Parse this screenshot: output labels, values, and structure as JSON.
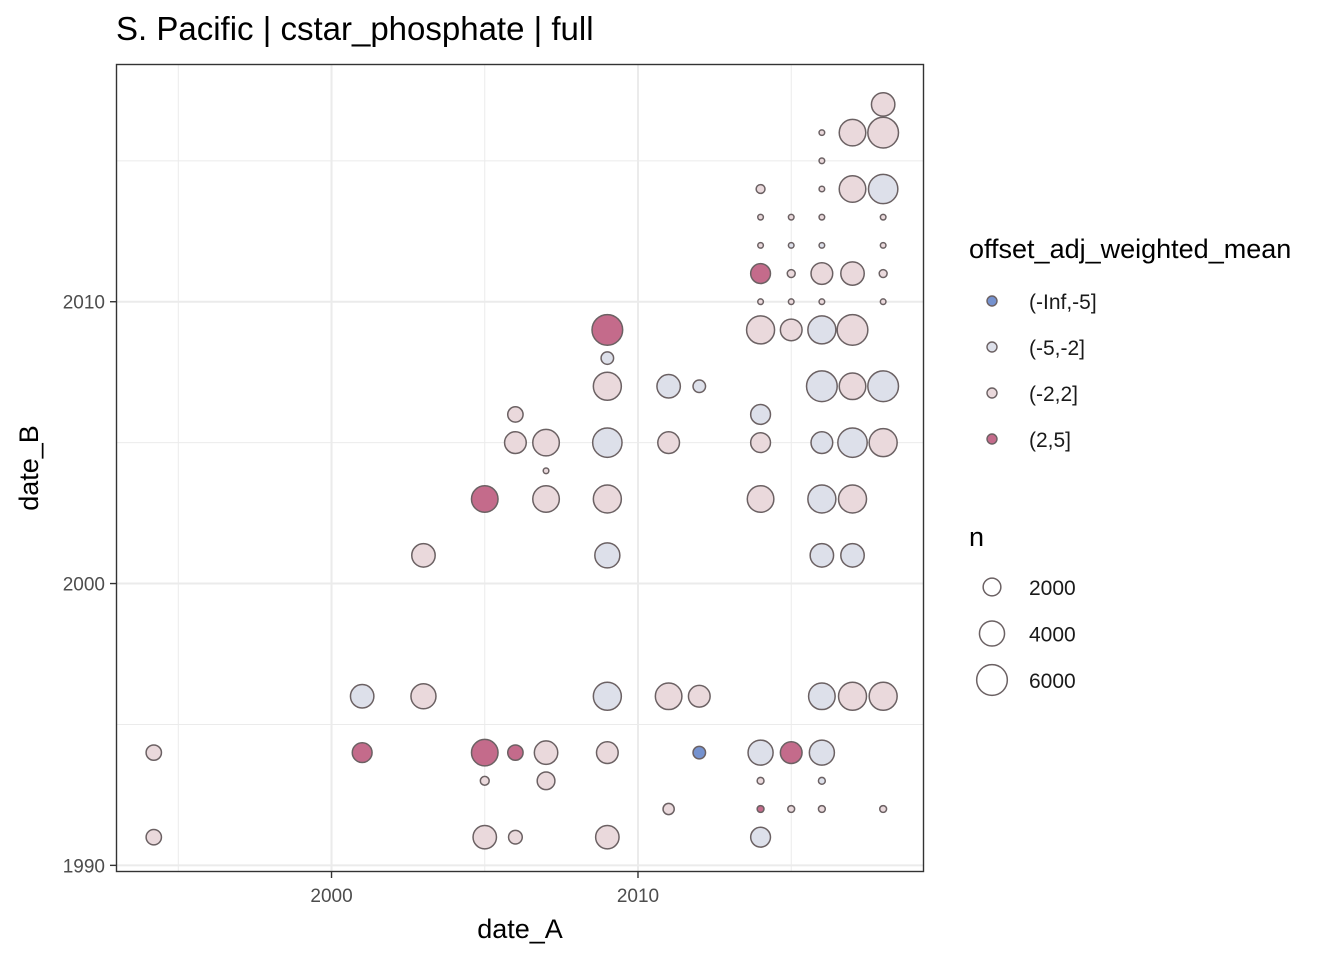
{
  "chart_data": {
    "type": "scatter",
    "title": "S. Pacific | cstar_phosphate | full",
    "xlabel": "date_A",
    "ylabel": "date_B",
    "xlim": [
      1993.0,
      2019.3
    ],
    "ylim": [
      1989.8,
      2018.4
    ],
    "x_ticks": [
      2000,
      2010
    ],
    "y_ticks": [
      1990,
      2000,
      2010
    ],
    "grid": true,
    "legend_position": "right",
    "color_legend": {
      "title": "offset_adj_weighted_mean",
      "entries": [
        {
          "label": "(-Inf,-5]",
          "color": "#7592cf"
        },
        {
          "label": "(-5,-2]",
          "color": "#dde0ea"
        },
        {
          "label": "(-2,2]",
          "color": "#ead9dc"
        },
        {
          "label": "(2,5]",
          "color": "#c46b8b"
        }
      ]
    },
    "size_legend": {
      "title": "n",
      "entries": [
        {
          "label": "2000",
          "value": 2000
        },
        {
          "label": "4000",
          "value": 4000
        },
        {
          "label": "6000",
          "value": 6000
        }
      ]
    },
    "points": [
      {
        "x": 1994.2,
        "y": 1994,
        "n": 1500,
        "group": "(-2,2]"
      },
      {
        "x": 1994.2,
        "y": 1991,
        "n": 1500,
        "group": "(-2,2]"
      },
      {
        "x": 2001,
        "y": 1996,
        "n": 3500,
        "group": "(-5,-2]"
      },
      {
        "x": 2001,
        "y": 1994,
        "n": 2500,
        "group": "(2,5]"
      },
      {
        "x": 2003,
        "y": 1996,
        "n": 4000,
        "group": "(-2,2]"
      },
      {
        "x": 2003,
        "y": 2001,
        "n": 3500,
        "group": "(-2,2]"
      },
      {
        "x": 2005,
        "y": 2003,
        "n": 4500,
        "group": "(2,5]"
      },
      {
        "x": 2005,
        "y": 1994,
        "n": 4500,
        "group": "(2,5]"
      },
      {
        "x": 2005,
        "y": 1993,
        "n": 500,
        "group": "(-2,2]"
      },
      {
        "x": 2005,
        "y": 1991,
        "n": 3500,
        "group": "(-2,2]"
      },
      {
        "x": 2006,
        "y": 2006,
        "n": 1500,
        "group": "(-2,2]"
      },
      {
        "x": 2006,
        "y": 2005,
        "n": 3000,
        "group": "(-2,2]"
      },
      {
        "x": 2006,
        "y": 1994,
        "n": 1500,
        "group": "(2,5]"
      },
      {
        "x": 2006,
        "y": 1991,
        "n": 1200,
        "group": "(-2,2]"
      },
      {
        "x": 2007,
        "y": 2005,
        "n": 4500,
        "group": "(-2,2]"
      },
      {
        "x": 2007,
        "y": 2004,
        "n": 200,
        "group": "(-2,2]"
      },
      {
        "x": 2007,
        "y": 2003,
        "n": 4500,
        "group": "(-2,2]"
      },
      {
        "x": 2007,
        "y": 1994,
        "n": 3500,
        "group": "(-2,2]"
      },
      {
        "x": 2007,
        "y": 1993,
        "n": 2000,
        "group": "(-2,2]"
      },
      {
        "x": 2009,
        "y": 2009,
        "n": 6000,
        "group": "(2,5]"
      },
      {
        "x": 2009,
        "y": 2008,
        "n": 1000,
        "group": "(-5,-2]"
      },
      {
        "x": 2009,
        "y": 2007,
        "n": 5000,
        "group": "(-2,2]"
      },
      {
        "x": 2009,
        "y": 2005,
        "n": 5500,
        "group": "(-5,-2]"
      },
      {
        "x": 2009,
        "y": 2003,
        "n": 5000,
        "group": "(-2,2]"
      },
      {
        "x": 2009,
        "y": 2001,
        "n": 4000,
        "group": "(-5,-2]"
      },
      {
        "x": 2009,
        "y": 1996,
        "n": 5000,
        "group": "(-5,-2]"
      },
      {
        "x": 2009,
        "y": 1994,
        "n": 3000,
        "group": "(-2,2]"
      },
      {
        "x": 2009,
        "y": 1991,
        "n": 3500,
        "group": "(-2,2]"
      },
      {
        "x": 2011,
        "y": 2007,
        "n": 3500,
        "group": "(-5,-2]"
      },
      {
        "x": 2011,
        "y": 2005,
        "n": 3000,
        "group": "(-2,2]"
      },
      {
        "x": 2011,
        "y": 1996,
        "n": 4500,
        "group": "(-2,2]"
      },
      {
        "x": 2011,
        "y": 1992,
        "n": 800,
        "group": "(-2,2]"
      },
      {
        "x": 2012,
        "y": 2007,
        "n": 1000,
        "group": "(-5,-2]"
      },
      {
        "x": 2012,
        "y": 1996,
        "n": 3000,
        "group": "(-2,2]"
      },
      {
        "x": 2012,
        "y": 1994,
        "n": 1000,
        "group": "(-Inf,-5]"
      },
      {
        "x": 2014,
        "y": 2014,
        "n": 500,
        "group": "(-2,2]"
      },
      {
        "x": 2014,
        "y": 2013,
        "n": 200,
        "group": "(-2,2]"
      },
      {
        "x": 2014,
        "y": 2012,
        "n": 200,
        "group": "(-2,2]"
      },
      {
        "x": 2014,
        "y": 2011,
        "n": 2500,
        "group": "(2,5]"
      },
      {
        "x": 2014,
        "y": 2010,
        "n": 200,
        "group": "(-2,2]"
      },
      {
        "x": 2014,
        "y": 2009,
        "n": 5000,
        "group": "(-2,2]"
      },
      {
        "x": 2014,
        "y": 2006,
        "n": 2500,
        "group": "(-5,-2]"
      },
      {
        "x": 2014,
        "y": 2005,
        "n": 2500,
        "group": "(-2,2]"
      },
      {
        "x": 2014,
        "y": 2003,
        "n": 4500,
        "group": "(-2,2]"
      },
      {
        "x": 2014,
        "y": 1994,
        "n": 4000,
        "group": "(-5,-2]"
      },
      {
        "x": 2014,
        "y": 1993,
        "n": 300,
        "group": "(-2,2]"
      },
      {
        "x": 2014,
        "y": 1992,
        "n": 300,
        "group": "(2,5]"
      },
      {
        "x": 2014,
        "y": 1991,
        "n": 2500,
        "group": "(-5,-2]"
      },
      {
        "x": 2015,
        "y": 2013,
        "n": 200,
        "group": "(-2,2]"
      },
      {
        "x": 2015,
        "y": 2012,
        "n": 200,
        "group": "(-5,-2]"
      },
      {
        "x": 2015,
        "y": 2011,
        "n": 400,
        "group": "(-2,2]"
      },
      {
        "x": 2015,
        "y": 2010,
        "n": 200,
        "group": "(-2,2]"
      },
      {
        "x": 2015,
        "y": 2009,
        "n": 3000,
        "group": "(-2,2]"
      },
      {
        "x": 2015,
        "y": 1994,
        "n": 3000,
        "group": "(2,5]"
      },
      {
        "x": 2015,
        "y": 1992,
        "n": 300,
        "group": "(-2,2]"
      },
      {
        "x": 2016,
        "y": 2016,
        "n": 200,
        "group": "(-2,2]"
      },
      {
        "x": 2016,
        "y": 2015,
        "n": 200,
        "group": "(-2,2]"
      },
      {
        "x": 2016,
        "y": 2014,
        "n": 200,
        "group": "(-2,2]"
      },
      {
        "x": 2016,
        "y": 2013,
        "n": 200,
        "group": "(-2,2]"
      },
      {
        "x": 2016,
        "y": 2012,
        "n": 200,
        "group": "(-5,-2]"
      },
      {
        "x": 2016,
        "y": 2011,
        "n": 3000,
        "group": "(-2,2]"
      },
      {
        "x": 2016,
        "y": 2010,
        "n": 200,
        "group": "(-2,2]"
      },
      {
        "x": 2016,
        "y": 2009,
        "n": 5000,
        "group": "(-5,-2]"
      },
      {
        "x": 2016,
        "y": 2007,
        "n": 6000,
        "group": "(-5,-2]"
      },
      {
        "x": 2016,
        "y": 2005,
        "n": 3000,
        "group": "(-5,-2]"
      },
      {
        "x": 2016,
        "y": 2003,
        "n": 5000,
        "group": "(-5,-2]"
      },
      {
        "x": 2016,
        "y": 2001,
        "n": 3500,
        "group": "(-5,-2]"
      },
      {
        "x": 2016,
        "y": 1996,
        "n": 4500,
        "group": "(-5,-2]"
      },
      {
        "x": 2016,
        "y": 1994,
        "n": 4000,
        "group": "(-5,-2]"
      },
      {
        "x": 2016,
        "y": 1993,
        "n": 300,
        "group": "(-5,-2]"
      },
      {
        "x": 2016,
        "y": 1992,
        "n": 300,
        "group": "(-2,2]"
      },
      {
        "x": 2017,
        "y": 2016,
        "n": 4500,
        "group": "(-2,2]"
      },
      {
        "x": 2017,
        "y": 2014,
        "n": 4500,
        "group": "(-2,2]"
      },
      {
        "x": 2017,
        "y": 2011,
        "n": 3500,
        "group": "(-2,2]"
      },
      {
        "x": 2017,
        "y": 2009,
        "n": 6000,
        "group": "(-2,2]"
      },
      {
        "x": 2017,
        "y": 2007,
        "n": 4500,
        "group": "(-2,2]"
      },
      {
        "x": 2017,
        "y": 2005,
        "n": 5500,
        "group": "(-5,-2]"
      },
      {
        "x": 2017,
        "y": 2003,
        "n": 5000,
        "group": "(-2,2]"
      },
      {
        "x": 2017,
        "y": 2001,
        "n": 3500,
        "group": "(-5,-2]"
      },
      {
        "x": 2017,
        "y": 1996,
        "n": 5000,
        "group": "(-2,2]"
      },
      {
        "x": 2018,
        "y": 2017,
        "n": 3500,
        "group": "(-2,2]"
      },
      {
        "x": 2018,
        "y": 2016,
        "n": 6000,
        "group": "(-2,2]"
      },
      {
        "x": 2018,
        "y": 2014,
        "n": 5500,
        "group": "(-5,-2]"
      },
      {
        "x": 2018,
        "y": 2013,
        "n": 200,
        "group": "(-2,2]"
      },
      {
        "x": 2018,
        "y": 2012,
        "n": 200,
        "group": "(-2,2]"
      },
      {
        "x": 2018,
        "y": 2011,
        "n": 400,
        "group": "(-2,2]"
      },
      {
        "x": 2018,
        "y": 2010,
        "n": 200,
        "group": "(-2,2]"
      },
      {
        "x": 2018,
        "y": 2007,
        "n": 6000,
        "group": "(-5,-2]"
      },
      {
        "x": 2018,
        "y": 2005,
        "n": 5000,
        "group": "(-2,2]"
      },
      {
        "x": 2018,
        "y": 1996,
        "n": 5000,
        "group": "(-2,2]"
      },
      {
        "x": 2018,
        "y": 1992,
        "n": 300,
        "group": "(-2,2]"
      }
    ]
  }
}
